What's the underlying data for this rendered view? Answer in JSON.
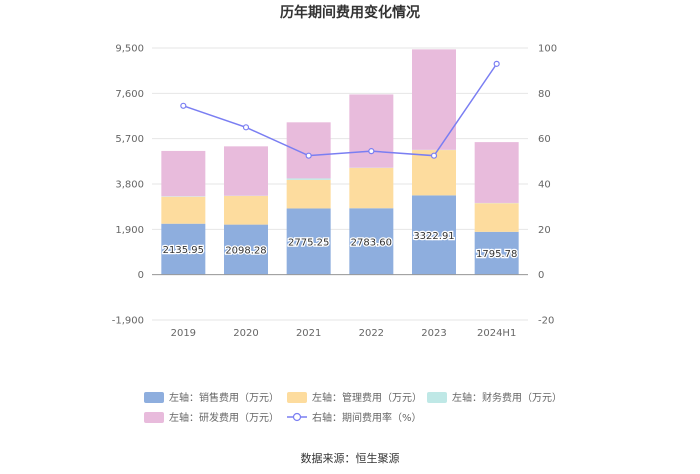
{
  "chart_data": {
    "type": "bar",
    "stacked": true,
    "title": "历年期间费用变化情况",
    "categories": [
      "2019",
      "2020",
      "2021",
      "2022",
      "2023",
      "2024H1"
    ],
    "series": [
      {
        "name": "左轴：销售费用（万元）",
        "axis": "left",
        "color": "#8eaede",
        "values": [
          2135.95,
          2098.28,
          2775.25,
          2783.6,
          3322.91,
          1795.78
        ]
      },
      {
        "name": "左轴：管理费用（万元）",
        "axis": "left",
        "color": "#fddc9e",
        "values": [
          1130,
          1200,
          1200,
          1690,
          1900,
          1200
        ]
      },
      {
        "name": "左轴：财务费用（万元）",
        "axis": "left",
        "color": "#bfe8e6",
        "values": [
          20,
          10,
          60,
          10,
          10,
          10
        ]
      },
      {
        "name": "左轴：研发费用（万元）",
        "axis": "left",
        "color": "#e8bbdc",
        "values": [
          1900,
          2070,
          2350,
          3070,
          4210,
          2550
        ]
      },
      {
        "name": "右轴：期间费用率（%）",
        "axis": "right",
        "type": "line",
        "color": "#7a7ef2",
        "values": [
          74.5,
          65.0,
          52.5,
          54.5,
          52.5,
          93.0
        ]
      }
    ],
    "data_labels": [
      "2135.95",
      "2098.28",
      "2775.25",
      "2783.60",
      "3322.91",
      "1795.78"
    ],
    "y_left": {
      "ylim": [
        -1900,
        9500
      ],
      "ticks": [
        "-1,900",
        "0",
        "1,900",
        "3,800",
        "5,700",
        "7,600",
        "9,500"
      ]
    },
    "y_right": {
      "ylim": [
        -20,
        100
      ],
      "ticks": [
        "-20",
        "0",
        "20",
        "40",
        "60",
        "80",
        "100"
      ]
    },
    "grid": true,
    "legend_position": "bottom"
  },
  "footer": {
    "source": "数据来源：恒生聚源"
  }
}
